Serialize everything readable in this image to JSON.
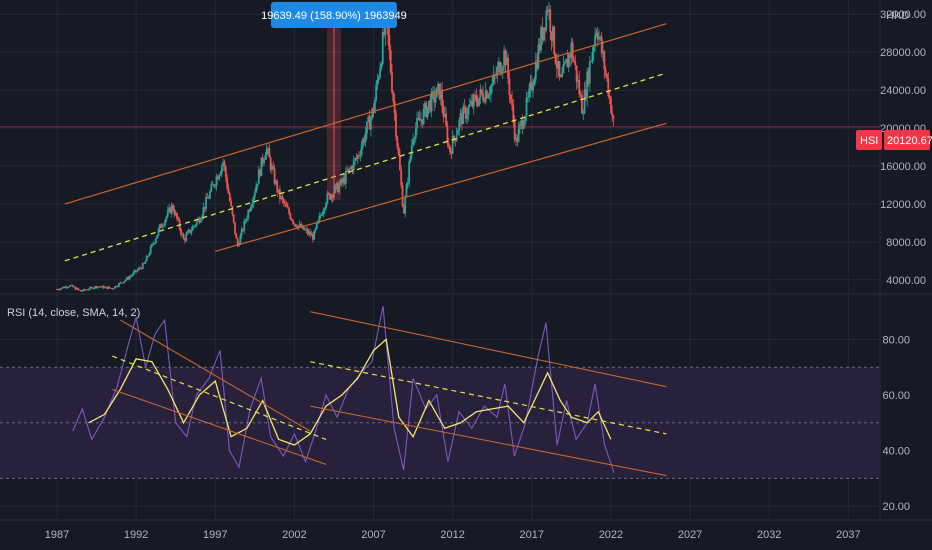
{
  "chart_data": [
    {
      "type": "candlestick",
      "symbol": "HSI",
      "currency": "HKD",
      "last_price": "20120.67",
      "ylim": [
        2500,
        33500
      ],
      "y_ticks": [
        "32000.00",
        "28000.00",
        "24000.00",
        "20000.00",
        "16000.00",
        "12000.00",
        "8000.00",
        "4000.00"
      ],
      "y_tick_values": [
        32000,
        28000,
        24000,
        20000,
        16000,
        12000,
        8000,
        4000
      ],
      "measure_label": "19639.49 (158.90%) 1963949",
      "measure_range": {
        "x": 2004.5,
        "from": 12400,
        "to": 32000
      },
      "close_path": [
        {
          "year": 1987.0,
          "close": 3000
        },
        {
          "year": 1987.8,
          "close": 3400
        },
        {
          "year": 1988.5,
          "close": 2800
        },
        {
          "year": 1989.5,
          "close": 3300
        },
        {
          "year": 1990.5,
          "close": 3100
        },
        {
          "year": 1991.5,
          "close": 4200
        },
        {
          "year": 1992.5,
          "close": 5600
        },
        {
          "year": 1993.5,
          "close": 9500
        },
        {
          "year": 1994.3,
          "close": 11800
        },
        {
          "year": 1995.0,
          "close": 8200
        },
        {
          "year": 1996.0,
          "close": 10500
        },
        {
          "year": 1997.5,
          "close": 16500
        },
        {
          "year": 1998.4,
          "close": 7500
        },
        {
          "year": 1999.5,
          "close": 13500
        },
        {
          "year": 2000.2,
          "close": 18000
        },
        {
          "year": 2001.0,
          "close": 13000
        },
        {
          "year": 2002.0,
          "close": 10000
        },
        {
          "year": 2003.2,
          "close": 8500
        },
        {
          "year": 2004.0,
          "close": 12500
        },
        {
          "year": 2005.0,
          "close": 14200
        },
        {
          "year": 2006.0,
          "close": 17000
        },
        {
          "year": 2007.0,
          "close": 22000
        },
        {
          "year": 2007.8,
          "close": 31500
        },
        {
          "year": 2008.9,
          "close": 11000
        },
        {
          "year": 2009.5,
          "close": 19500
        },
        {
          "year": 2010.5,
          "close": 22500
        },
        {
          "year": 2011.2,
          "close": 24000
        },
        {
          "year": 2011.8,
          "close": 17500
        },
        {
          "year": 2012.5,
          "close": 21000
        },
        {
          "year": 2013.5,
          "close": 23000
        },
        {
          "year": 2014.5,
          "close": 24500
        },
        {
          "year": 2015.3,
          "close": 28000
        },
        {
          "year": 2016.0,
          "close": 18500
        },
        {
          "year": 2016.8,
          "close": 23000
        },
        {
          "year": 2018.0,
          "close": 33000
        },
        {
          "year": 2018.8,
          "close": 24500
        },
        {
          "year": 2019.5,
          "close": 28500
        },
        {
          "year": 2020.2,
          "close": 22000
        },
        {
          "year": 2021.1,
          "close": 31000
        },
        {
          "year": 2021.8,
          "close": 24500
        },
        {
          "year": 2022.2,
          "close": 20120
        }
      ],
      "channel": {
        "color": "#c7642c",
        "upper": [
          {
            "year": 1987.5,
            "value": 12000
          },
          {
            "year": 2025.5,
            "value": 31000
          }
        ],
        "middle": [
          {
            "year": 1987.5,
            "value": 6000
          },
          {
            "year": 2025.5,
            "value": 25800
          }
        ],
        "lower": [
          {
            "year": 1997.0,
            "value": 7000
          },
          {
            "year": 2025.5,
            "value": 20500
          }
        ]
      }
    },
    {
      "type": "line",
      "title": "RSI (14, close, SMA, 14, 2)",
      "ylim": [
        15,
        96
      ],
      "y_ticks": [
        "80.00",
        "60.00",
        "40.00",
        "20.00"
      ],
      "y_tick_values": [
        80,
        60,
        40,
        20
      ],
      "band": [
        30,
        70
      ],
      "midline": 50,
      "rsi": [
        {
          "year": 1988.0,
          "value": 47
        },
        {
          "year": 1988.6,
          "value": 55
        },
        {
          "year": 1989.2,
          "value": 44
        },
        {
          "year": 1990.0,
          "value": 52
        },
        {
          "year": 1990.8,
          "value": 63
        },
        {
          "year": 1991.5,
          "value": 78
        },
        {
          "year": 1992.0,
          "value": 88
        },
        {
          "year": 1992.6,
          "value": 70
        },
        {
          "year": 1993.2,
          "value": 82
        },
        {
          "year": 1993.8,
          "value": 87
        },
        {
          "year": 1994.5,
          "value": 50
        },
        {
          "year": 1995.2,
          "value": 45
        },
        {
          "year": 1995.8,
          "value": 60
        },
        {
          "year": 1996.6,
          "value": 66
        },
        {
          "year": 1997.3,
          "value": 76
        },
        {
          "year": 1997.9,
          "value": 40
        },
        {
          "year": 1998.5,
          "value": 34
        },
        {
          "year": 1999.2,
          "value": 55
        },
        {
          "year": 1999.9,
          "value": 66
        },
        {
          "year": 2000.5,
          "value": 45
        },
        {
          "year": 2001.3,
          "value": 38
        },
        {
          "year": 2002.0,
          "value": 46
        },
        {
          "year": 2002.7,
          "value": 36
        },
        {
          "year": 2003.4,
          "value": 48
        },
        {
          "year": 2004.0,
          "value": 60
        },
        {
          "year": 2004.7,
          "value": 52
        },
        {
          "year": 2005.4,
          "value": 62
        },
        {
          "year": 2006.2,
          "value": 68
        },
        {
          "year": 2006.9,
          "value": 72
        },
        {
          "year": 2007.6,
          "value": 92
        },
        {
          "year": 2008.3,
          "value": 48
        },
        {
          "year": 2008.9,
          "value": 33
        },
        {
          "year": 2009.5,
          "value": 66
        },
        {
          "year": 2010.3,
          "value": 55
        },
        {
          "year": 2011.0,
          "value": 60
        },
        {
          "year": 2011.7,
          "value": 36
        },
        {
          "year": 2012.4,
          "value": 54
        },
        {
          "year": 2013.2,
          "value": 48
        },
        {
          "year": 2014.0,
          "value": 56
        },
        {
          "year": 2014.8,
          "value": 52
        },
        {
          "year": 2015.3,
          "value": 64
        },
        {
          "year": 2015.9,
          "value": 38
        },
        {
          "year": 2016.6,
          "value": 50
        },
        {
          "year": 2017.4,
          "value": 74
        },
        {
          "year": 2017.9,
          "value": 86
        },
        {
          "year": 2018.6,
          "value": 42
        },
        {
          "year": 2019.2,
          "value": 58
        },
        {
          "year": 2019.8,
          "value": 44
        },
        {
          "year": 2020.5,
          "value": 50
        },
        {
          "year": 2021.0,
          "value": 64
        },
        {
          "year": 2021.6,
          "value": 42
        },
        {
          "year": 2022.2,
          "value": 32
        }
      ],
      "rsi_sma": [
        {
          "year": 1989.0,
          "value": 50
        },
        {
          "year": 1990.0,
          "value": 53
        },
        {
          "year": 1991.0,
          "value": 62
        },
        {
          "year": 1992.0,
          "value": 73
        },
        {
          "year": 1993.0,
          "value": 72
        },
        {
          "year": 1994.0,
          "value": 62
        },
        {
          "year": 1995.0,
          "value": 50
        },
        {
          "year": 1996.0,
          "value": 60
        },
        {
          "year": 1997.0,
          "value": 65
        },
        {
          "year": 1998.0,
          "value": 45
        },
        {
          "year": 1999.0,
          "value": 48
        },
        {
          "year": 2000.0,
          "value": 58
        },
        {
          "year": 2001.0,
          "value": 44
        },
        {
          "year": 2002.0,
          "value": 42
        },
        {
          "year": 2003.0,
          "value": 46
        },
        {
          "year": 2004.0,
          "value": 56
        },
        {
          "year": 2005.0,
          "value": 60
        },
        {
          "year": 2006.0,
          "value": 66
        },
        {
          "year": 2007.0,
          "value": 76
        },
        {
          "year": 2007.8,
          "value": 80
        },
        {
          "year": 2008.6,
          "value": 52
        },
        {
          "year": 2009.5,
          "value": 45
        },
        {
          "year": 2010.5,
          "value": 58
        },
        {
          "year": 2011.5,
          "value": 48
        },
        {
          "year": 2012.5,
          "value": 50
        },
        {
          "year": 2013.5,
          "value": 54
        },
        {
          "year": 2014.5,
          "value": 55
        },
        {
          "year": 2015.5,
          "value": 56
        },
        {
          "year": 2016.5,
          "value": 50
        },
        {
          "year": 2017.5,
          "value": 62
        },
        {
          "year": 2018.0,
          "value": 68
        },
        {
          "year": 2018.8,
          "value": 58
        },
        {
          "year": 2019.5,
          "value": 52
        },
        {
          "year": 2020.5,
          "value": 50
        },
        {
          "year": 2021.2,
          "value": 54
        },
        {
          "year": 2022.0,
          "value": 44
        }
      ],
      "channels": [
        {
          "color": "#c7642c",
          "upper": [
            {
              "year": 1991.0,
              "value": 87
            },
            {
              "year": 2003.0,
              "value": 47
            }
          ],
          "middle": [
            {
              "year": 1990.5,
              "value": 74
            },
            {
              "year": 2004.0,
              "value": 44
            }
          ],
          "lower": [
            {
              "year": 1990.5,
              "value": 62
            },
            {
              "year": 2004.0,
              "value": 35
            }
          ]
        },
        {
          "color": "#c7642c",
          "upper": [
            {
              "year": 2003.0,
              "value": 90
            },
            {
              "year": 2025.5,
              "value": 63
            }
          ],
          "middle": [
            {
              "year": 2003.0,
              "value": 72
            },
            {
              "year": 2025.5,
              "value": 46
            }
          ],
          "lower": [
            {
              "year": 2003.0,
              "value": 56
            },
            {
              "year": 2025.5,
              "value": 31
            }
          ]
        }
      ]
    }
  ],
  "x_axis": {
    "xlim": [
      1983.4,
      2039.0
    ],
    "ticks": [
      "1987",
      "1992",
      "1997",
      "2002",
      "2007",
      "2012",
      "2017",
      "2022",
      "2027",
      "2032",
      "2037"
    ],
    "tick_values": [
      1987,
      1992,
      1997,
      2002,
      2007,
      2012,
      2017,
      2022,
      2027,
      2032,
      2037
    ]
  },
  "colors": {
    "background": "#161a25",
    "grid": "#252936",
    "up": "#26a69a",
    "down": "#ef5350",
    "channel": "#c7642c",
    "midline": "#e5e34a",
    "rsi": "#7e57c2",
    "rsi_sma": "#f5e56b",
    "rsi_band": "#2a2340",
    "price_badge": "#f23645",
    "measure_badge": "#1e88e5"
  }
}
